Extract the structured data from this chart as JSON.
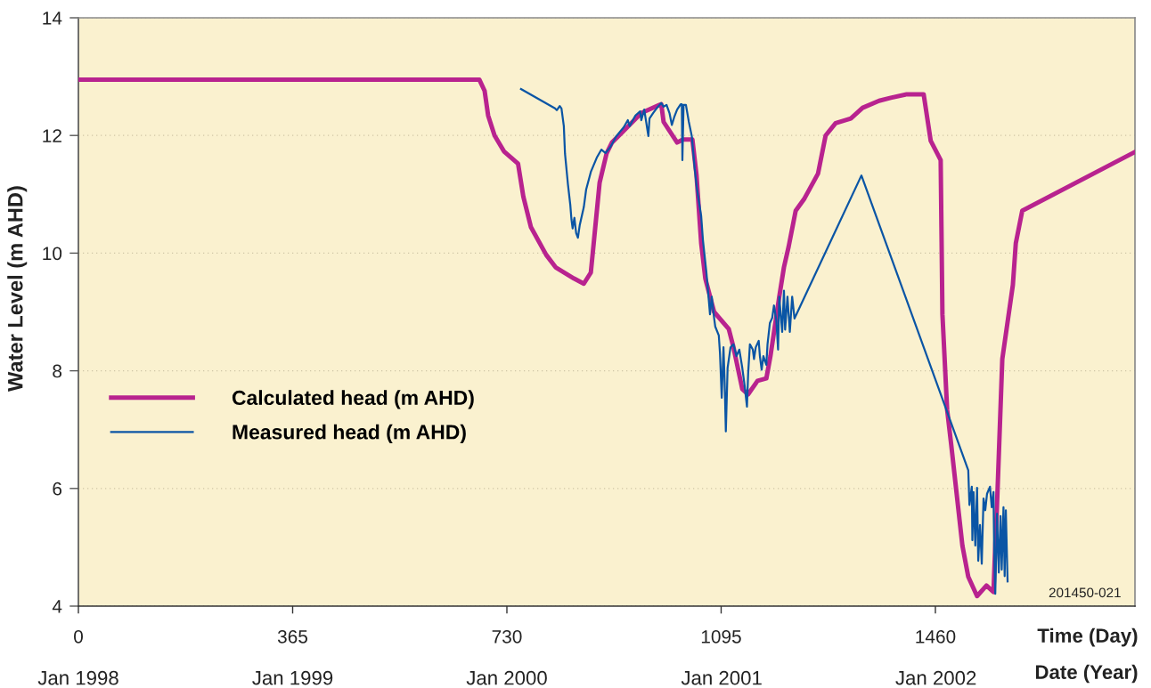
{
  "chart_data": {
    "type": "line",
    "xlabel": "Time (Day)",
    "x2label": "Date (Year)",
    "ylabel": "Water Level (m AHD)",
    "xlim": [
      0,
      1800
    ],
    "xticks": [
      0,
      365,
      730,
      1095,
      1460
    ],
    "x2lim": [
      "1998-01-01",
      "2002-12-06"
    ],
    "x2ticks": [
      {
        "value": "1998-01",
        "label": "Jan 1998"
      },
      {
        "value": "1999-01",
        "label": "Jan 1999"
      },
      {
        "value": "2000-01",
        "label": "Jan 2000"
      },
      {
        "value": "2001-01",
        "label": "Jan 2001"
      },
      {
        "value": "2002-01",
        "label": "Jan 2002"
      }
    ],
    "ylim": [
      4,
      14
    ],
    "yticks": [
      4,
      6,
      8,
      10,
      12,
      14
    ],
    "grid": "y",
    "legend": "left",
    "annotations": [
      "201450-021"
    ],
    "series": [
      {
        "name": "Calculated head (m AHD)",
        "color": "#b8238f",
        "x": [
          0,
          683,
          692,
          698,
          709,
          725,
          749,
          758,
          771,
          797,
          813,
          844,
          861,
          873,
          888,
          900,
          909,
          929,
          959,
          990,
          993,
          997,
          1020,
          1030,
          1046,
          1053,
          1061,
          1068,
          1083,
          1108,
          1116,
          1131,
          1141,
          1157,
          1172,
          1179,
          1194,
          1202,
          1210,
          1222,
          1237,
          1260,
          1273,
          1290,
          1316,
          1336,
          1364,
          1384,
          1411,
          1440,
          1452,
          1469,
          1472,
          1480,
          1487,
          1506,
          1516,
          1531,
          1547,
          1559,
          1562,
          1564,
          1574,
          1592,
          1597,
          1608,
          1800
        ],
        "values": [
          12.95,
          12.95,
          12.76,
          12.34,
          12.0,
          11.73,
          11.52,
          10.96,
          10.44,
          9.97,
          9.76,
          9.57,
          9.48,
          9.67,
          11.2,
          11.7,
          11.88,
          12.08,
          12.38,
          12.52,
          12.53,
          12.23,
          11.88,
          11.93,
          11.93,
          11.33,
          10.17,
          9.57,
          9.0,
          8.71,
          8.4,
          7.69,
          7.6,
          7.83,
          7.87,
          8.25,
          9.26,
          9.76,
          10.11,
          10.72,
          10.93,
          11.35,
          12.0,
          12.21,
          12.29,
          12.47,
          12.59,
          12.64,
          12.7,
          12.7,
          11.91,
          11.58,
          8.96,
          7.34,
          6.74,
          5.03,
          4.5,
          4.17,
          4.35,
          4.24,
          5.03,
          5.45,
          8.2,
          9.46,
          10.17,
          10.72,
          11.72
        ]
      },
      {
        "name": "Measured head (m AHD)",
        "color": "#0a55a5",
        "x": [
          754,
          812,
          815,
          820,
          823,
          827,
          829,
          834,
          838,
          840,
          842,
          845,
          848,
          851,
          854,
          861,
          865,
          873,
          883,
          891,
          898,
          906,
          916,
          929,
          936,
          939,
          949,
          957,
          959,
          964,
          971,
          973,
          979,
          985,
          993,
          997,
          1002,
          1007,
          1011,
          1015,
          1020,
          1026,
          1028,
          1029,
          1031,
          1035,
          1040,
          1045,
          1050,
          1054,
          1061,
          1064,
          1070,
          1074,
          1076,
          1079,
          1083,
          1085,
          1091,
          1093,
          1096,
          1099,
          1101,
          1103,
          1106,
          1111,
          1116,
          1121,
          1126,
          1131,
          1135,
          1139,
          1141,
          1144,
          1149,
          1151,
          1154,
          1159,
          1161,
          1164,
          1167,
          1172,
          1174,
          1178,
          1182,
          1185,
          1189,
          1192,
          1194,
          1199,
          1202,
          1204,
          1208,
          1212,
          1216,
          1220,
          1334,
          1516,
          1518,
          1522,
          1523,
          1525,
          1528,
          1531,
          1533,
          1536,
          1539,
          1542,
          1545,
          1548,
          1553,
          1556,
          1559,
          1560,
          1562,
          1565,
          1568,
          1571,
          1573,
          1576,
          1578,
          1580,
          1583
        ],
        "values": [
          12.79,
          12.46,
          12.43,
          12.5,
          12.46,
          12.16,
          11.69,
          11.17,
          10.82,
          10.57,
          10.42,
          10.6,
          10.34,
          10.26,
          10.47,
          10.78,
          11.08,
          11.38,
          11.62,
          11.76,
          11.7,
          11.8,
          11.98,
          12.14,
          12.26,
          12.16,
          12.34,
          12.41,
          12.26,
          12.44,
          11.99,
          12.29,
          12.38,
          12.46,
          12.55,
          12.49,
          12.52,
          12.38,
          12.18,
          12.31,
          12.44,
          12.53,
          12.53,
          11.58,
          12.52,
          12.52,
          12.23,
          11.99,
          11.43,
          11.08,
          10.63,
          10.22,
          9.66,
          9.2,
          8.96,
          9.26,
          8.9,
          8.75,
          8.6,
          8.3,
          7.54,
          8.4,
          7.8,
          6.97,
          8.05,
          8.4,
          8.45,
          8.25,
          8.36,
          8.05,
          7.75,
          7.39,
          7.95,
          8.45,
          8.36,
          8.2,
          8.4,
          8.51,
          8.25,
          8.02,
          8.25,
          8.1,
          8.45,
          8.81,
          8.9,
          9.11,
          8.86,
          8.36,
          9.26,
          8.66,
          9.36,
          8.7,
          9.26,
          8.66,
          9.26,
          8.89,
          11.32,
          6.31,
          5.72,
          6.03,
          5.12,
          5.94,
          5.03,
          6.01,
          4.77,
          5.38,
          4.72,
          5.83,
          5.63,
          5.91,
          6.03,
          5.68,
          5.94,
          5.07,
          4.21,
          5.57,
          4.57,
          5.53,
          4.62,
          5.68,
          4.51,
          5.63,
          4.42
        ]
      }
    ]
  }
}
